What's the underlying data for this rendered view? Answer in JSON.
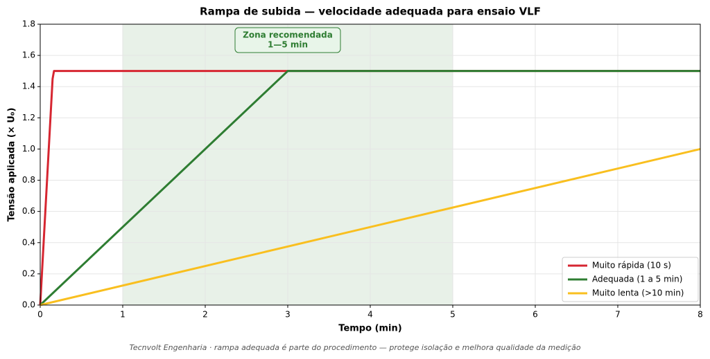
{
  "chart_data": {
    "type": "line",
    "title": "Rampa de subida — velocidade adequada para ensaio VLF",
    "x_label": "Tempo (min)",
    "y_label": "Tensão aplicada (× U₀)",
    "footer": "Tecnvolt Engenharia · rampa adequada é parte do procedimento — protege isolação e melhora qualidade da medição",
    "annotation": [
      "Zona recomendada",
      "1—5 min"
    ],
    "shade": [
      1,
      5
    ],
    "shade_color": "#2e7d32",
    "series": [
      {
        "name": "Muito rápida (10 s)",
        "color": "#d62631",
        "x": [
          0,
          0.15,
          0.167,
          8
        ],
        "values": [
          0,
          1.45,
          1.5,
          1.5
        ]
      },
      {
        "name": "Adequada (1 a 5 min)",
        "color": "#2e7d32",
        "x": [
          0,
          3,
          8
        ],
        "values": [
          0,
          1.5,
          1.5
        ]
      },
      {
        "name": "Muito lenta (>10 min)",
        "color": "#f9bf1f",
        "x": [
          0,
          8
        ],
        "values": [
          0,
          1.0
        ]
      }
    ],
    "xlim": [
      0,
      8
    ],
    "xticks": [
      0,
      1,
      2,
      3,
      4,
      5,
      6,
      7,
      8
    ],
    "ylim": [
      0,
      1.8
    ],
    "yticks": [
      {
        "value": 0,
        "label": "0.0"
      },
      0.2,
      0.4,
      0.6,
      0.8,
      {
        "value": 1,
        "label": "1.0"
      },
      1.2,
      1.4,
      1.6,
      1.8
    ],
    "grid": true,
    "legend": "lower right"
  }
}
